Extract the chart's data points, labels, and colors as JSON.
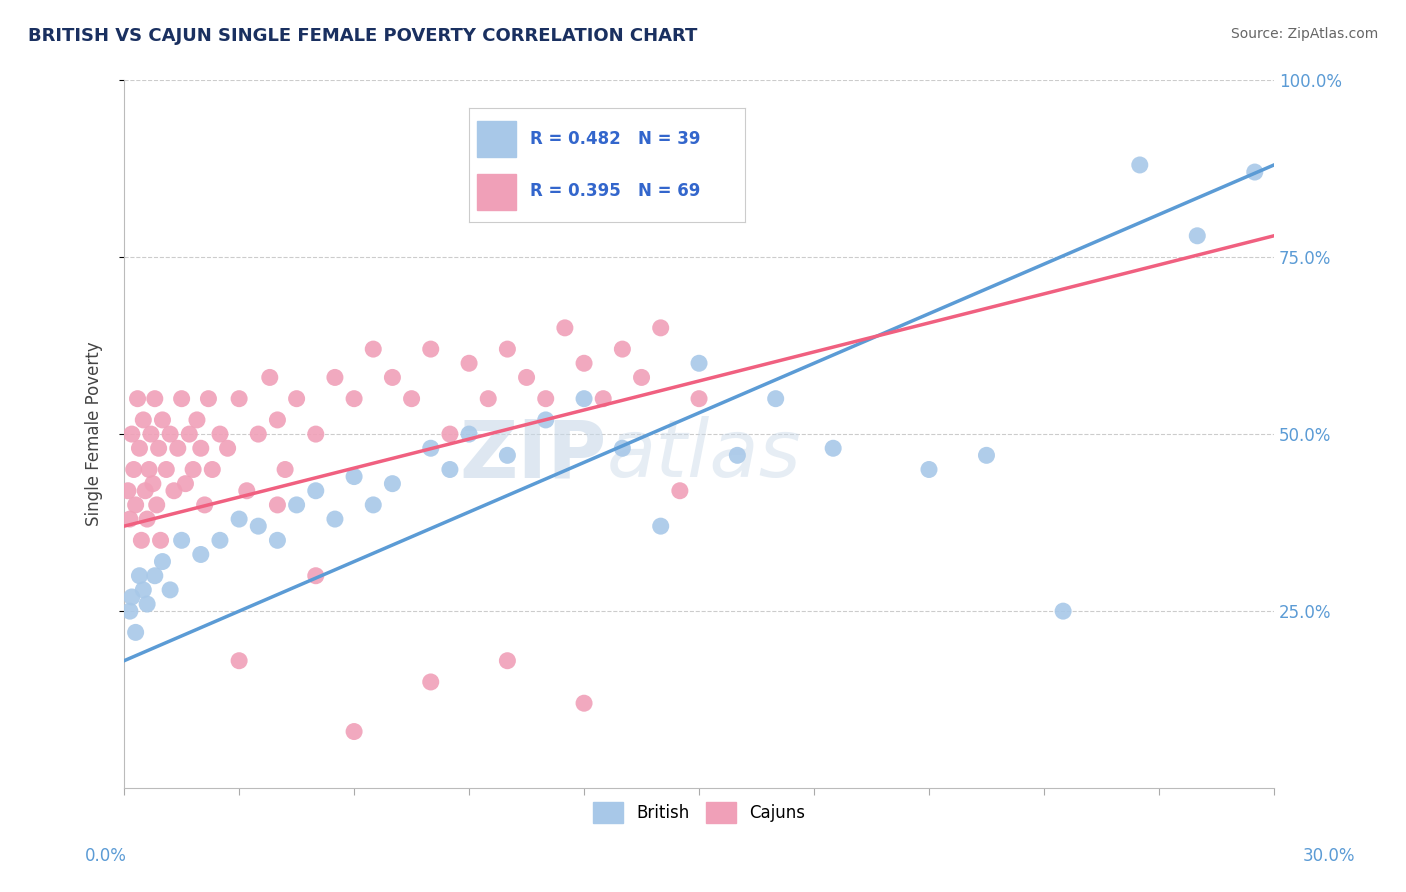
{
  "title": "BRITISH VS CAJUN SINGLE FEMALE POVERTY CORRELATION CHART",
  "source": "Source: ZipAtlas.com",
  "ylabel": "Single Female Poverty",
  "british_color": "#a8c8e8",
  "cajun_color": "#f0a0b8",
  "british_line_color": "#5b9bd5",
  "cajun_line_color": "#f06080",
  "watermark_zip": "ZIP",
  "watermark_atlas": "atlas",
  "R_british": 0.482,
  "N_british": 39,
  "R_cajun": 0.395,
  "N_cajun": 69,
  "legend_color": "#3366cc",
  "xmin": 0.0,
  "xmax": 30.0,
  "ymin": 0.0,
  "ymax": 100.0,
  "ytick_vals": [
    25,
    50,
    75,
    100
  ],
  "ytick_labels": [
    "25.0%",
    "50.0%",
    "75.0%",
    "100.0%"
  ],
  "xtick_vals": [
    0,
    3,
    6,
    9,
    12,
    15,
    18,
    21,
    24,
    27,
    30
  ],
  "british_line_x": [
    0,
    30
  ],
  "british_line_y": [
    18,
    88
  ],
  "cajun_line_x": [
    0,
    30
  ],
  "cajun_line_y": [
    37,
    78
  ],
  "british_points": [
    [
      0.15,
      25
    ],
    [
      0.2,
      27
    ],
    [
      0.3,
      22
    ],
    [
      0.4,
      30
    ],
    [
      0.5,
      28
    ],
    [
      0.6,
      26
    ],
    [
      0.8,
      30
    ],
    [
      1.0,
      32
    ],
    [
      1.2,
      28
    ],
    [
      1.5,
      35
    ],
    [
      2.0,
      33
    ],
    [
      2.5,
      35
    ],
    [
      3.0,
      38
    ],
    [
      3.5,
      37
    ],
    [
      4.0,
      35
    ],
    [
      4.5,
      40
    ],
    [
      5.0,
      42
    ],
    [
      5.5,
      38
    ],
    [
      6.0,
      44
    ],
    [
      6.5,
      40
    ],
    [
      7.0,
      43
    ],
    [
      8.0,
      48
    ],
    [
      8.5,
      45
    ],
    [
      9.0,
      50
    ],
    [
      10.0,
      47
    ],
    [
      11.0,
      52
    ],
    [
      12.0,
      55
    ],
    [
      13.0,
      48
    ],
    [
      14.0,
      37
    ],
    [
      15.0,
      60
    ],
    [
      16.0,
      47
    ],
    [
      17.0,
      55
    ],
    [
      18.5,
      48
    ],
    [
      21.0,
      45
    ],
    [
      22.5,
      47
    ],
    [
      24.5,
      25
    ],
    [
      26.5,
      88
    ],
    [
      28.0,
      78
    ],
    [
      29.5,
      87
    ]
  ],
  "cajun_points": [
    [
      0.1,
      42
    ],
    [
      0.15,
      38
    ],
    [
      0.2,
      50
    ],
    [
      0.25,
      45
    ],
    [
      0.3,
      40
    ],
    [
      0.35,
      55
    ],
    [
      0.4,
      48
    ],
    [
      0.45,
      35
    ],
    [
      0.5,
      52
    ],
    [
      0.55,
      42
    ],
    [
      0.6,
      38
    ],
    [
      0.65,
      45
    ],
    [
      0.7,
      50
    ],
    [
      0.75,
      43
    ],
    [
      0.8,
      55
    ],
    [
      0.85,
      40
    ],
    [
      0.9,
      48
    ],
    [
      0.95,
      35
    ],
    [
      1.0,
      52
    ],
    [
      1.1,
      45
    ],
    [
      1.2,
      50
    ],
    [
      1.3,
      42
    ],
    [
      1.4,
      48
    ],
    [
      1.5,
      55
    ],
    [
      1.6,
      43
    ],
    [
      1.7,
      50
    ],
    [
      1.8,
      45
    ],
    [
      1.9,
      52
    ],
    [
      2.0,
      48
    ],
    [
      2.1,
      40
    ],
    [
      2.2,
      55
    ],
    [
      2.3,
      45
    ],
    [
      2.5,
      50
    ],
    [
      2.7,
      48
    ],
    [
      3.0,
      55
    ],
    [
      3.2,
      42
    ],
    [
      3.5,
      50
    ],
    [
      3.8,
      58
    ],
    [
      4.0,
      52
    ],
    [
      4.2,
      45
    ],
    [
      4.5,
      55
    ],
    [
      5.0,
      50
    ],
    [
      5.5,
      58
    ],
    [
      6.0,
      55
    ],
    [
      6.5,
      62
    ],
    [
      7.0,
      58
    ],
    [
      7.5,
      55
    ],
    [
      8.0,
      62
    ],
    [
      8.5,
      50
    ],
    [
      9.0,
      60
    ],
    [
      9.5,
      55
    ],
    [
      10.0,
      62
    ],
    [
      10.5,
      58
    ],
    [
      11.0,
      55
    ],
    [
      11.5,
      65
    ],
    [
      12.0,
      60
    ],
    [
      12.5,
      55
    ],
    [
      13.0,
      62
    ],
    [
      13.5,
      58
    ],
    [
      14.0,
      65
    ],
    [
      14.5,
      42
    ],
    [
      15.0,
      55
    ],
    [
      4.0,
      40
    ],
    [
      6.0,
      8
    ],
    [
      8.0,
      15
    ],
    [
      10.0,
      18
    ],
    [
      12.0,
      12
    ],
    [
      5.0,
      30
    ],
    [
      3.0,
      18
    ]
  ]
}
